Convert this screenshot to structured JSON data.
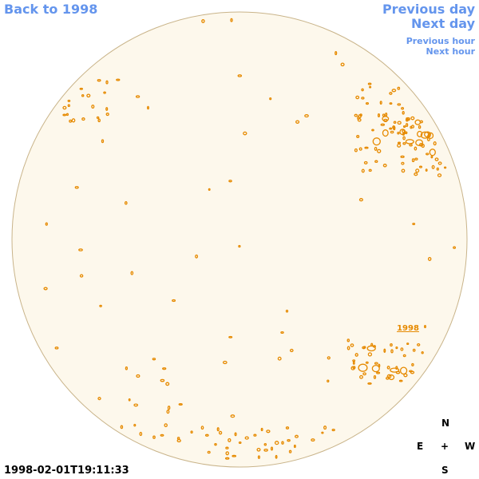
{
  "nav": {
    "back": "Back to 1998",
    "previous_day": "Previous day",
    "next_day": "Next day",
    "previous_hour": "Previous hour",
    "next_hour": "Next hour"
  },
  "timestamp": "1998-02-01T19:11:33",
  "compass": {
    "north": "N",
    "south": "S",
    "east": "E",
    "west": "W",
    "center": "+"
  },
  "region_label": "1998",
  "colors": {
    "disk_fill": "#fdf8ec",
    "disk_stroke": "#c9b48a",
    "contour": "#e68a00",
    "link": "#6495ed"
  }
}
